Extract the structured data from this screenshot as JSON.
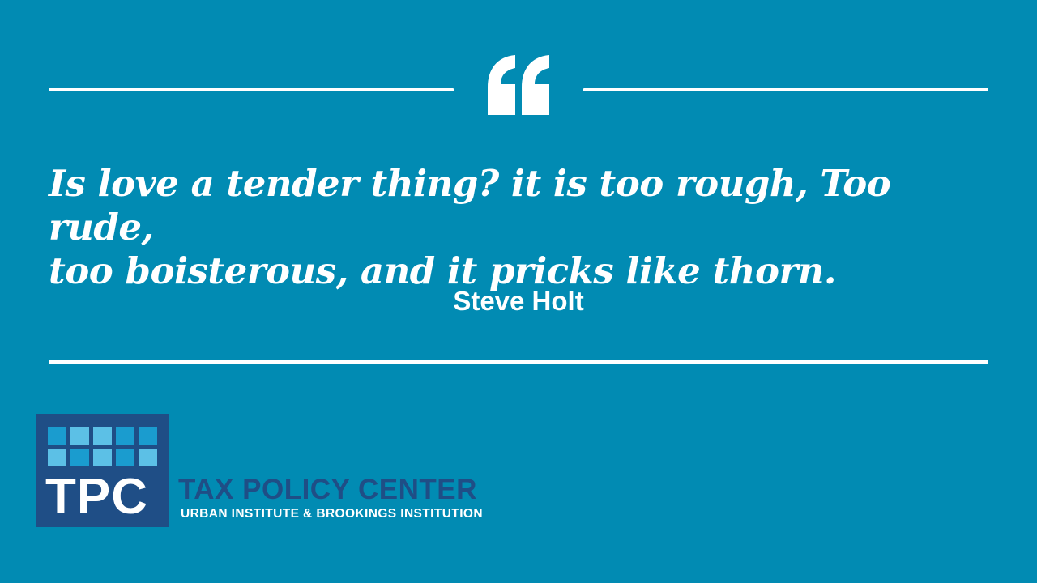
{
  "quote": {
    "line1": "Is love a tender thing? it is too rough, Too rude,",
    "line2": "too boisterous, and it pricks like thorn.",
    "author": "Steve Holt"
  },
  "logo": {
    "letters": "TPC",
    "org_name": "TAX POLICY CENTER",
    "org_subtitle": "URBAN INSTITUTE & BROOKINGS INSTITUTION"
  },
  "colors": {
    "background": "#018bb3",
    "logo_navy": "#1f4e86",
    "text": "#ffffff"
  }
}
